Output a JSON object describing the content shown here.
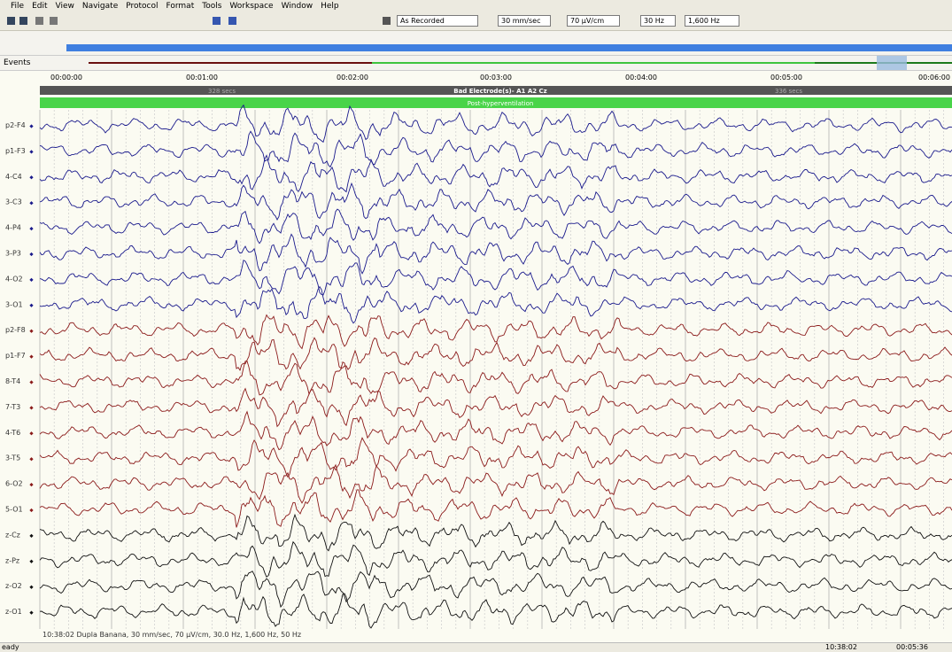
{
  "window": {
    "menu": [
      "File",
      "Edit",
      "View",
      "Navigate",
      "Protocol",
      "Format",
      "Tools",
      "Workspace",
      "Window",
      "Help"
    ],
    "toolbar": {
      "dropdowns": [
        "As Recorded",
        "30 mm/sec",
        "70 µV/cm",
        "30 Hz",
        "1,600 Hz"
      ]
    },
    "events_label": "Events",
    "timeline": [
      "00:00:00",
      "00:01:00",
      "00:02:00",
      "00:03:00",
      "00:04:00",
      "00:05:00",
      "00:06:00"
    ],
    "annotations": {
      "left": "328 secs",
      "center": "Bad Electrode(s)- A1 A2 Cz",
      "right": "336 secs",
      "green": "Post-hyperventilation"
    },
    "channels": [
      {
        "label": "p2-F4",
        "color": "#1a1a8c"
      },
      {
        "label": "p1-F3",
        "color": "#1a1a8c"
      },
      {
        "label": "4-C4",
        "color": "#1a1a8c"
      },
      {
        "label": "3-C3",
        "color": "#1a1a8c"
      },
      {
        "label": "4-P4",
        "color": "#1a1a8c"
      },
      {
        "label": "3-P3",
        "color": "#1a1a8c"
      },
      {
        "label": "4-O2",
        "color": "#1a1a8c"
      },
      {
        "label": "3-O1",
        "color": "#1a1a8c"
      },
      {
        "label": "p2-F8",
        "color": "#8b1a1a"
      },
      {
        "label": "p1-F7",
        "color": "#8b1a1a"
      },
      {
        "label": "8-T4",
        "color": "#8b1a1a"
      },
      {
        "label": "7-T3",
        "color": "#8b1a1a"
      },
      {
        "label": "4-T6",
        "color": "#8b1a1a"
      },
      {
        "label": "3-T5",
        "color": "#8b1a1a"
      },
      {
        "label": "6-O2",
        "color": "#8b1a1a"
      },
      {
        "label": "5-O1",
        "color": "#8b1a1a"
      },
      {
        "label": "z-Cz",
        "color": "#111111"
      },
      {
        "label": "z-Pz",
        "color": "#111111"
      },
      {
        "label": "z-O2",
        "color": "#111111"
      },
      {
        "label": "z-O1",
        "color": "#111111"
      }
    ],
    "footer_info": "10:38:02 Dupla Banana, 30 mm/sec, 70 µV/cm, 30.0 Hz, 1,600 Hz, 50 Hz",
    "status": {
      "left": "eady",
      "clock": "10:38:02",
      "elapsed": "00:05:36"
    }
  }
}
